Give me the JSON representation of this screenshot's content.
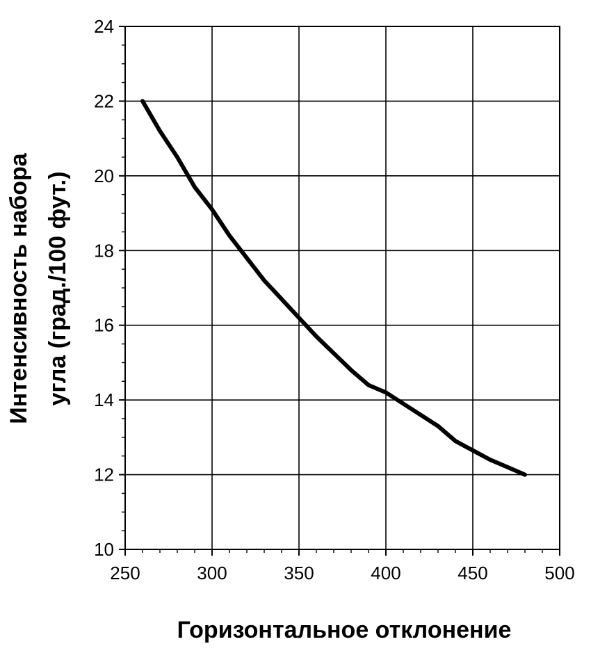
{
  "chart_data": {
    "type": "line",
    "xlabel": "Горизонтальное отклонение",
    "ylabel_lines": [
      "Интенсивность набора",
      "угла (град./100  фут.)"
    ],
    "xlim": [
      250,
      500
    ],
    "ylim": [
      10,
      24
    ],
    "x_ticks": [
      250,
      300,
      350,
      400,
      450,
      500
    ],
    "y_ticks": [
      10,
      12,
      14,
      16,
      18,
      20,
      22,
      24
    ],
    "x_tick_labels": [
      "250",
      "300",
      "350",
      "400",
      "450",
      "500"
    ],
    "y_tick_labels": [
      "10",
      "12",
      "14",
      "16",
      "18",
      "20",
      "22",
      "24"
    ],
    "x_minor_step": 10,
    "y_minor_step": 0.5,
    "grid": true,
    "legend": "none",
    "line_color": "#000000",
    "series": [
      {
        "x": [
          260,
          270,
          280,
          290,
          300,
          310,
          320,
          330,
          340,
          350,
          360,
          370,
          380,
          390,
          400,
          410,
          420,
          430,
          440,
          450,
          460,
          470,
          480
        ],
        "values": [
          22.0,
          21.2,
          20.5,
          19.7,
          19.1,
          18.4,
          17.8,
          17.2,
          16.7,
          16.2,
          15.7,
          15.25,
          14.8,
          14.4,
          14.2,
          13.9,
          13.6,
          13.3,
          12.9,
          12.65,
          12.4,
          12.2,
          12.0
        ]
      }
    ]
  }
}
